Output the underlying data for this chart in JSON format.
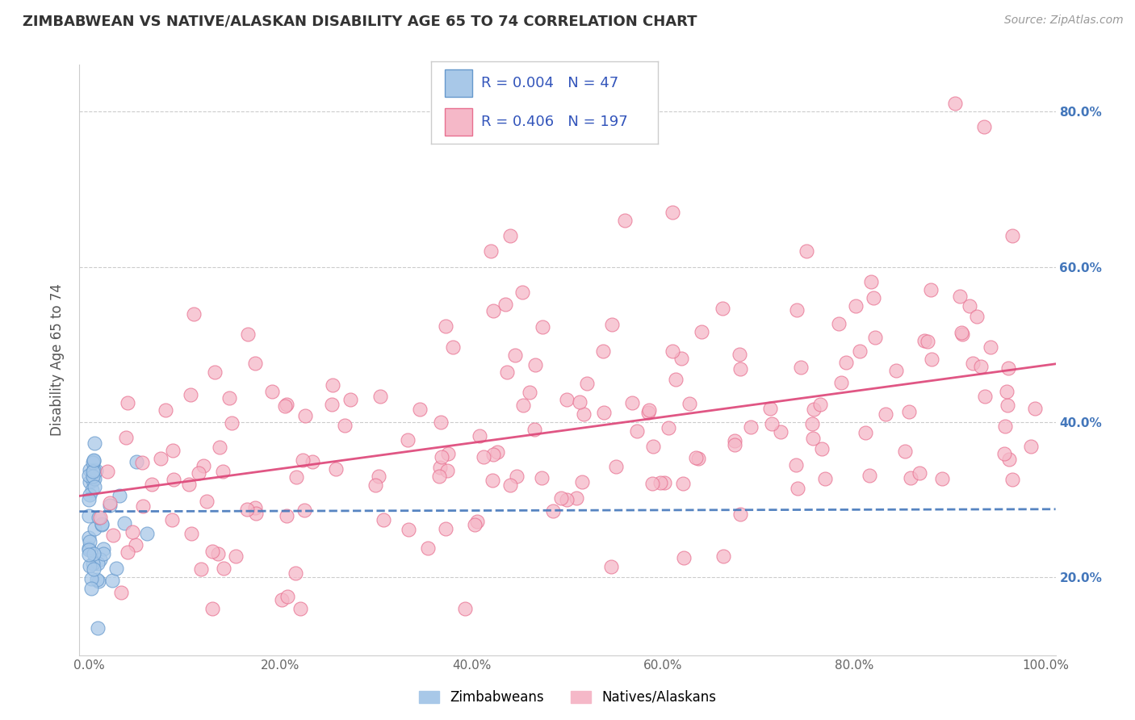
{
  "title": "ZIMBABWEAN VS NATIVE/ALASKAN DISABILITY AGE 65 TO 74 CORRELATION CHART",
  "source": "Source: ZipAtlas.com",
  "ylabel": "Disability Age 65 to 74",
  "xlim": [
    -0.01,
    1.01
  ],
  "ylim": [
    0.1,
    0.86
  ],
  "xticks": [
    0.0,
    0.2,
    0.4,
    0.6,
    0.8,
    1.0
  ],
  "xtick_labels": [
    "0.0%",
    "20.0%",
    "40.0%",
    "60.0%",
    "80.0%",
    "100.0%"
  ],
  "yticks": [
    0.2,
    0.4,
    0.6,
    0.8
  ],
  "ytick_labels": [
    "20.0%",
    "40.0%",
    "60.0%",
    "80.0%"
  ],
  "legend_blue_r": "0.004",
  "legend_blue_n": "47",
  "legend_pink_r": "0.406",
  "legend_pink_n": "197",
  "blue_scatter_color": "#a8c8e8",
  "blue_scatter_edge": "#6699cc",
  "pink_scatter_color": "#f5b8c8",
  "pink_scatter_edge": "#e87090",
  "blue_line_color": "#4477bb",
  "pink_line_color": "#dd4477",
  "legend_text_color": "#3355bb",
  "title_color": "#333333",
  "source_color": "#999999",
  "grid_color": "#cccccc",
  "background_color": "#ffffff",
  "right_tick_color": "#4477bb",
  "zim_trendline": [
    0.0,
    1.0,
    0.285,
    0.288
  ],
  "nat_trendline": [
    0.0,
    1.0,
    0.305,
    0.475
  ]
}
